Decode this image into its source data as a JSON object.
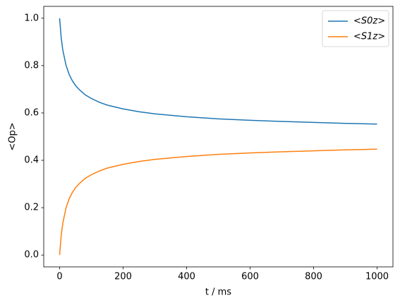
{
  "chart_data": {
    "type": "line",
    "x_label": "t / ms",
    "y_label": "<Op>",
    "x": [
      0,
      5,
      10,
      20,
      30,
      40,
      50,
      60,
      80,
      100,
      125,
      150,
      200,
      250,
      300,
      400,
      500,
      600,
      700,
      800,
      900,
      1000
    ],
    "series": [
      {
        "name": "<S0z>",
        "color": "#1f77b4",
        "values": [
          1.0,
          0.917,
          0.866,
          0.802,
          0.763,
          0.736,
          0.716,
          0.701,
          0.677,
          0.661,
          0.645,
          0.633,
          0.617,
          0.605,
          0.596,
          0.584,
          0.575,
          0.569,
          0.564,
          0.56,
          0.556,
          0.553
        ]
      },
      {
        "name": "<S1z>",
        "color": "#ff7f0e",
        "values": [
          0.0,
          0.083,
          0.134,
          0.198,
          0.237,
          0.264,
          0.284,
          0.299,
          0.323,
          0.339,
          0.355,
          0.367,
          0.383,
          0.395,
          0.404,
          0.416,
          0.425,
          0.431,
          0.436,
          0.44,
          0.444,
          0.447
        ]
      }
    ],
    "xlim": [
      -50,
      1050
    ],
    "xticks": [
      0,
      200,
      400,
      600,
      800,
      1000
    ],
    "ylim": [
      -0.05,
      1.05
    ],
    "yticks": [
      {
        "value": 0,
        "label": "0.0"
      },
      {
        "value": 0.2,
        "label": "0.2"
      },
      {
        "value": 0.4,
        "label": "0.4"
      },
      {
        "value": 0.6,
        "label": "0.6"
      },
      {
        "value": 0.8,
        "label": "0.8"
      },
      {
        "value": 1,
        "label": "1.0"
      }
    ],
    "legend": "upper right",
    "grid": false
  }
}
